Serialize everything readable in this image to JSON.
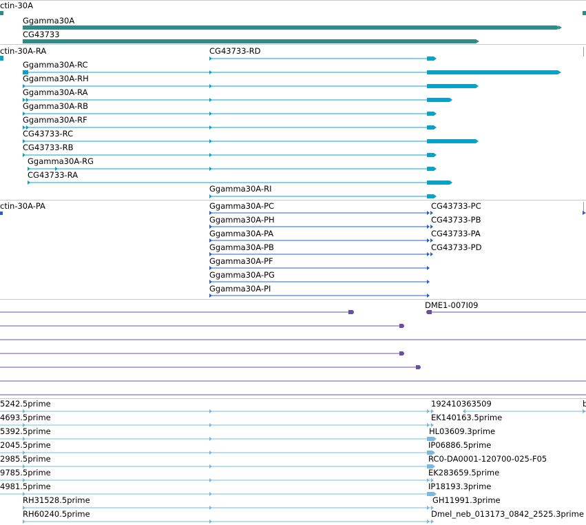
{
  "colors": {
    "gene": "#2e8b8b",
    "transcript": "#0aa0c8",
    "protein": "#2a5fc8",
    "clone": "#6a4fa0",
    "est": "#7ab8e0"
  },
  "gene_track": {
    "items": [
      "ctin-30A",
      "Ggamma30A",
      "CG43733"
    ]
  },
  "transcript_track": {
    "items": [
      "ctin-30A-RA",
      "CG43733-RD",
      "Ggamma30A-RC",
      "Ggamma30A-RH",
      "Ggamma30A-RA",
      "Ggamma30A-RB",
      "Ggamma30A-RF",
      "CG43733-RC",
      "CG43733-RB",
      "Ggamma30A-RG",
      "CG43733-RA",
      "Ggamma30A-RI"
    ]
  },
  "protein_track": {
    "items": [
      "ctin-30A-PA",
      "Ggamma30A-PC",
      "Ggamma30A-PH",
      "Ggamma30A-PA",
      "Ggamma30A-PB",
      "Ggamma30A-PF",
      "Ggamma30A-PG",
      "Ggamma30A-PI",
      "CG43733-PC",
      "CG43733-PB",
      "CG43733-PA",
      "CG43733-PD"
    ]
  },
  "clone_track": {
    "items": [
      "DME1-007I09"
    ]
  },
  "est_track": {
    "items": [
      "5242.5prime",
      "4693.5prime",
      "5392.5prime",
      "2045.5prime",
      "2985.5prime",
      "9785.5prime",
      "4981.5prime",
      "RH31528.5prime",
      "RH60240.5prime",
      "192410363509",
      "EK140163.5prime",
      "HL03609.3prime",
      "IP06886.5prime",
      "RC0-DA0001-120700-025-F05",
      "EK283659.5prime",
      "IP18193.3prime",
      "GH11991.3prime",
      "Dmel_neb_013173_0842_2525.3prime"
    ]
  }
}
